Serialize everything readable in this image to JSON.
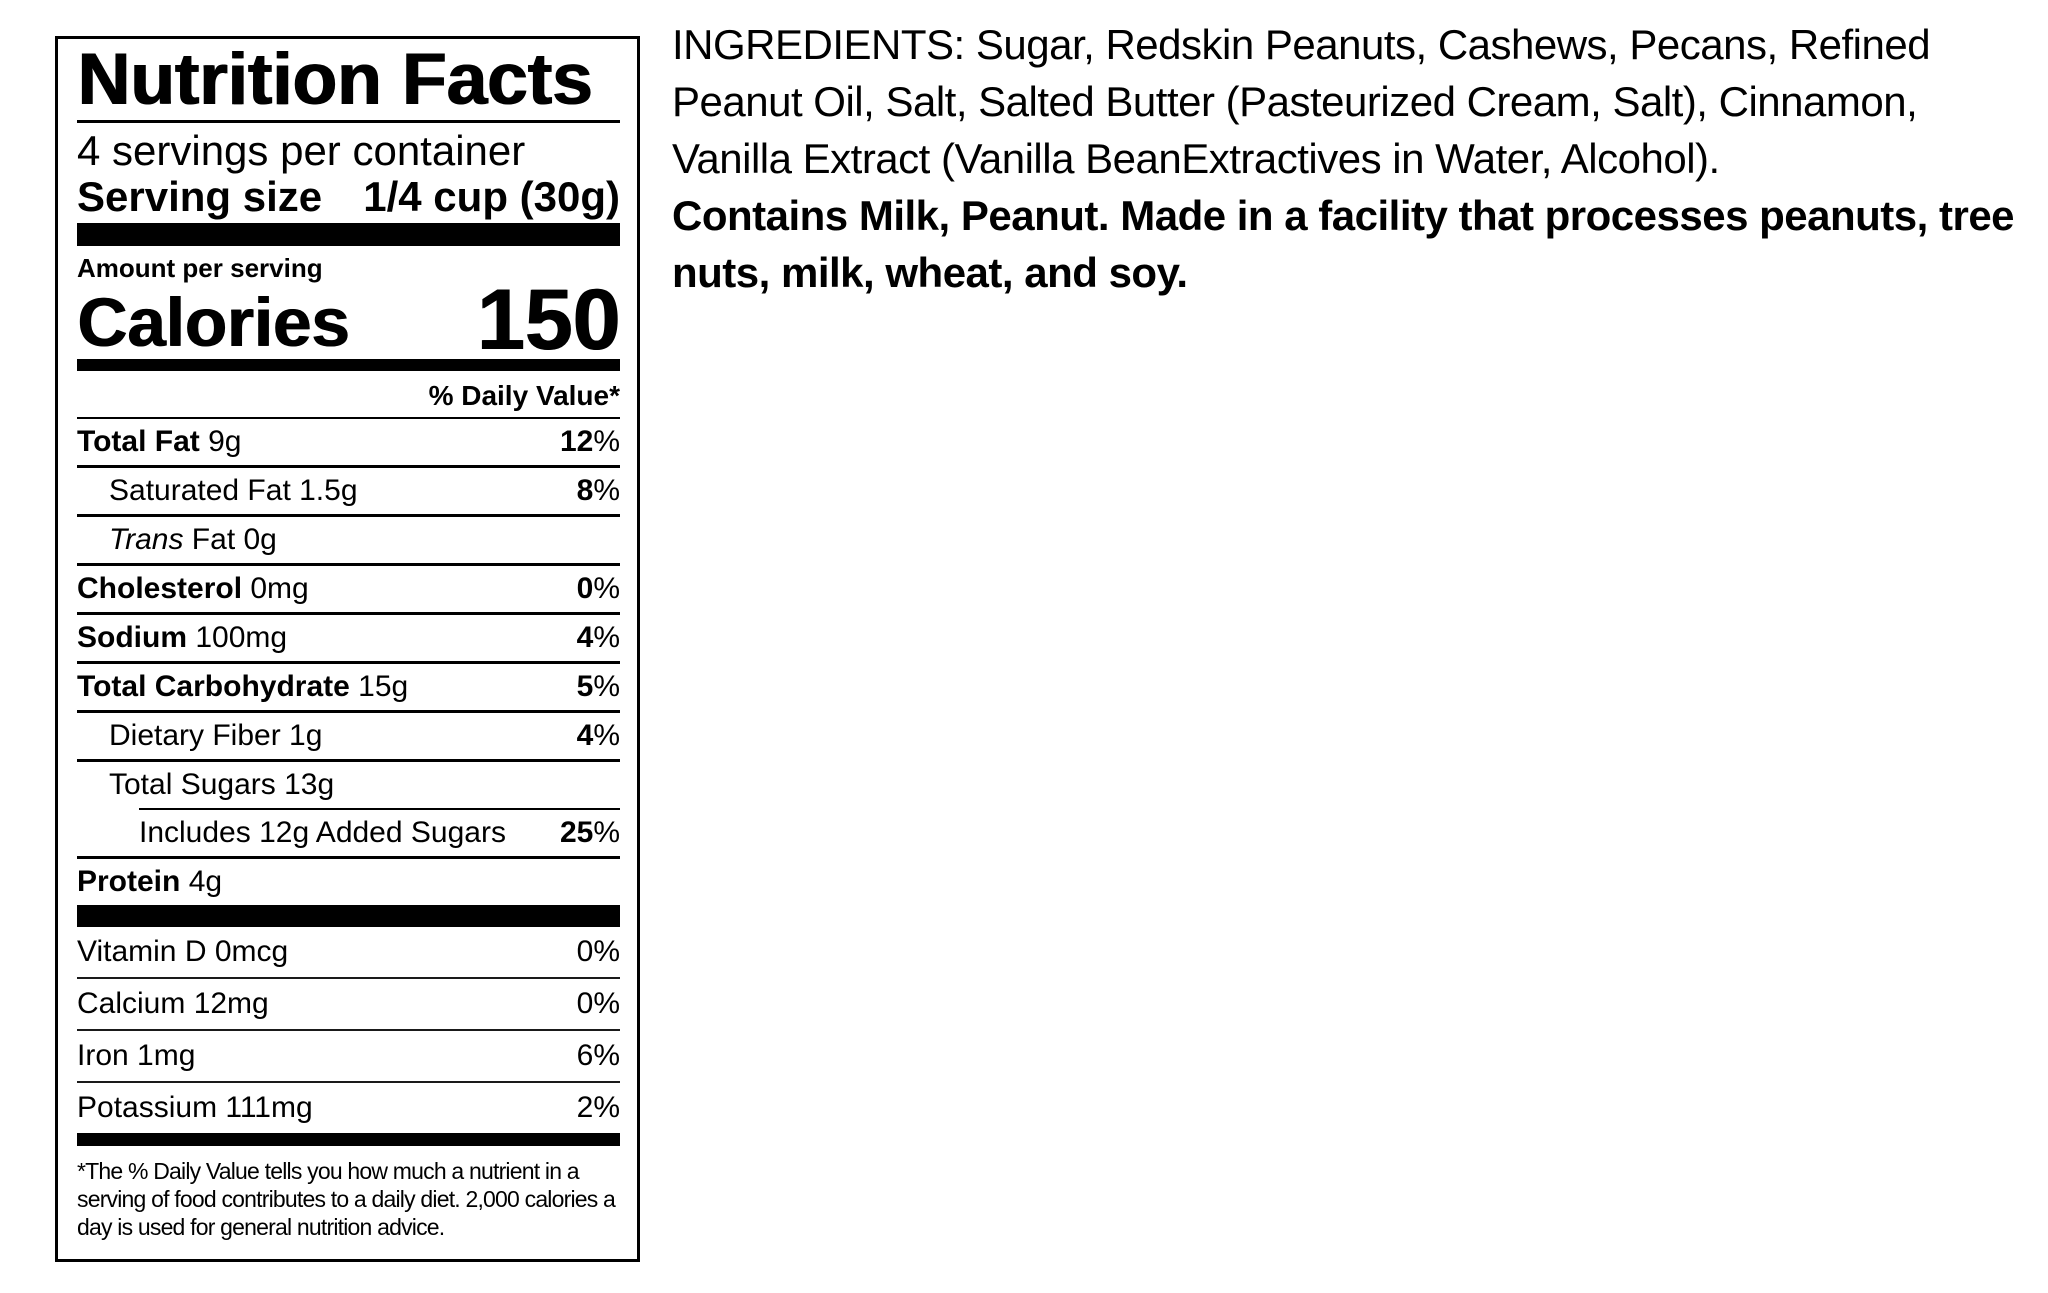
{
  "colors": {
    "text": "#000000",
    "background": "#ffffff"
  },
  "nutrition_label": {
    "title": "Nutrition Facts",
    "servings_per_container": "4 servings per container",
    "serving_size_label": "Serving size",
    "serving_size_value": "1/4 cup (30g)",
    "amount_per_serving": "Amount per serving",
    "calories_label": "Calories",
    "calories_value": "150",
    "daily_value_header": "% Daily Value*",
    "nutrients": [
      {
        "name": "Total Fat",
        "amount": "9g",
        "dv": "12%",
        "bold": true,
        "indent": 0,
        "rule_below": true
      },
      {
        "name": "Saturated Fat",
        "amount": "1.5g",
        "dv": "8%",
        "bold": false,
        "indent": 1,
        "rule_below": true
      },
      {
        "name": "Trans Fat",
        "amount": "0g",
        "dv": "",
        "bold": false,
        "italic_first_word": true,
        "indent": 1,
        "rule_below": true
      },
      {
        "name": "Cholesterol",
        "amount": "0mg",
        "dv": "0%",
        "bold": true,
        "indent": 0,
        "rule_below": true
      },
      {
        "name": "Sodium",
        "amount": "100mg",
        "dv": "4%",
        "bold": true,
        "indent": 0,
        "rule_below": true
      },
      {
        "name": "Total Carbohydrate",
        "amount": "15g",
        "dv": "5%",
        "bold": true,
        "indent": 0,
        "rule_below": true
      },
      {
        "name": "Dietary Fiber",
        "amount": "1g",
        "dv": "4%",
        "bold": false,
        "indent": 1,
        "rule_below": true
      },
      {
        "name": "Total Sugars",
        "amount": "13g",
        "dv": "",
        "bold": false,
        "indent": 1,
        "rule_below": false,
        "rule_below_indented": true
      },
      {
        "name": "Includes 12g Added Sugars",
        "amount": "",
        "dv": "25%",
        "bold": false,
        "indent": 2,
        "rule_below": true
      },
      {
        "name": "Protein",
        "amount": "4g",
        "dv": "",
        "bold": true,
        "indent": 0,
        "rule_below": false
      }
    ],
    "vitamins": [
      {
        "name": "Vitamin D",
        "amount": "0mcg",
        "dv": "0%"
      },
      {
        "name": "Calcium",
        "amount": "12mg",
        "dv": "0%"
      },
      {
        "name": "Iron",
        "amount": "1mg",
        "dv": "6%"
      },
      {
        "name": "Potassium",
        "amount": "111mg",
        "dv": "2%"
      }
    ],
    "footnote": "*The % Daily Value tells you how much a nutrient in a serving of food contributes to a daily diet. 2,000 calories a day is used for general nutrition advice."
  },
  "ingredients_panel": {
    "ingredients": "INGREDIENTS: Sugar, Redskin Peanuts, Cashews, Pecans, Refined Peanut Oil, Salt, Salted Butter (Pasteurized Cream, Salt), Cinnamon, Vanilla Extract (Vanilla BeanExtractives in Water, Alcohol).",
    "allergen_statement": "Contains Milk, Peanut. Made in a facility that processes peanuts, tree nuts, milk, wheat, and soy."
  }
}
